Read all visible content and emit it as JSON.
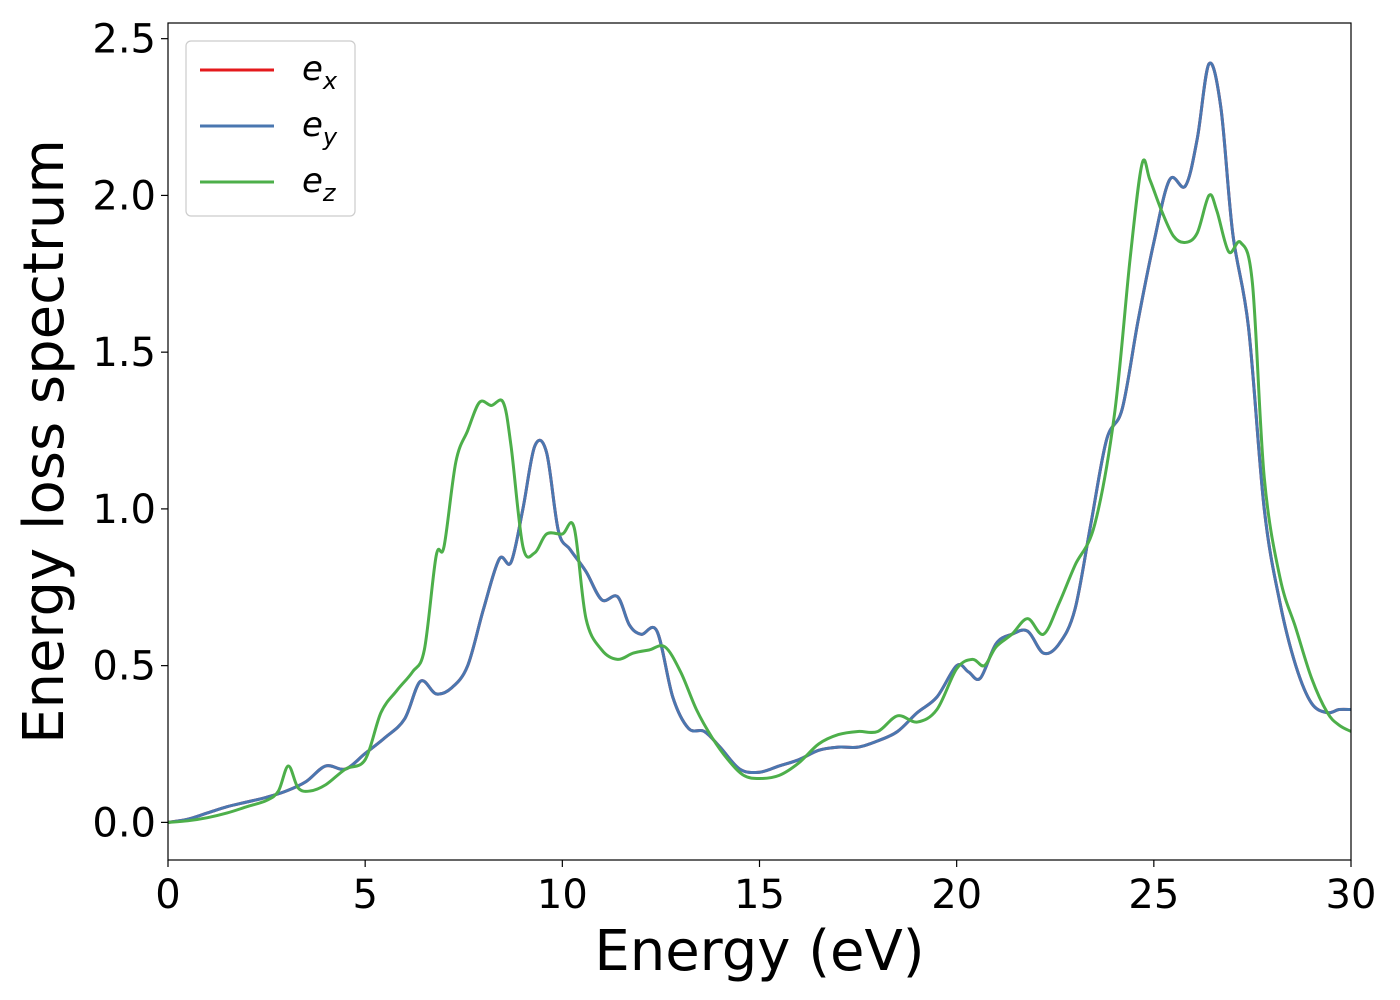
{
  "chart_data": {
    "type": "line",
    "title": "",
    "xlabel": "Energy (eV)",
    "ylabel": "Energy loss spectrum",
    "xlim": [
      0,
      30
    ],
    "ylim": [
      -0.12,
      2.55
    ],
    "xticks": [
      0,
      5,
      10,
      15,
      20,
      25,
      30
    ],
    "xtick_labels": [
      "0",
      "5",
      "10",
      "15",
      "20",
      "25",
      "30"
    ],
    "yticks": [
      0.0,
      0.5,
      1.0,
      1.5,
      2.0,
      2.5
    ],
    "ytick_labels": [
      "0.0",
      "0.5",
      "1.0",
      "1.5",
      "2.0",
      "2.5"
    ],
    "grid": false,
    "legend_position": "top-left",
    "series": [
      {
        "name": "e_x",
        "base": "e",
        "sub": "x",
        "color": "#e41a1c",
        "x": [
          0,
          0.5,
          1,
          1.5,
          2,
          2.5,
          3,
          3.5,
          4,
          4.5,
          5,
          5.5,
          6,
          6.4,
          6.8,
          7.2,
          7.6,
          8,
          8.4,
          8.7,
          9,
          9.3,
          9.6,
          9.9,
          10.2,
          10.6,
          11,
          11.4,
          11.7,
          12,
          12.4,
          12.8,
          13.2,
          13.6,
          14,
          14.5,
          15,
          15.5,
          16,
          16.5,
          17,
          17.5,
          18,
          18.5,
          19,
          19.5,
          20,
          20.3,
          20.6,
          21,
          21.4,
          21.8,
          22.2,
          22.6,
          23,
          23.4,
          23.8,
          24.2,
          24.6,
          25,
          25.4,
          25.8,
          26.1,
          26.4,
          26.7,
          27,
          27.4,
          27.8,
          28.2,
          28.6,
          29,
          29.4,
          29.7,
          30
        ],
        "y": [
          0,
          0.01,
          0.03,
          0.05,
          0.065,
          0.08,
          0.1,
          0.13,
          0.18,
          0.17,
          0.22,
          0.27,
          0.33,
          0.45,
          0.41,
          0.43,
          0.5,
          0.68,
          0.84,
          0.83,
          1.0,
          1.2,
          1.18,
          0.93,
          0.87,
          0.8,
          0.71,
          0.72,
          0.63,
          0.6,
          0.61,
          0.4,
          0.3,
          0.29,
          0.24,
          0.17,
          0.16,
          0.18,
          0.2,
          0.23,
          0.24,
          0.24,
          0.26,
          0.29,
          0.35,
          0.4,
          0.5,
          0.48,
          0.46,
          0.57,
          0.6,
          0.61,
          0.54,
          0.57,
          0.68,
          0.95,
          1.22,
          1.32,
          1.6,
          1.85,
          2.05,
          2.03,
          2.18,
          2.42,
          2.28,
          1.88,
          1.58,
          1.0,
          0.7,
          0.5,
          0.38,
          0.35,
          0.36,
          0.36
        ]
      },
      {
        "name": "e_y",
        "base": "e",
        "sub": "y",
        "color": "#4a77b0",
        "x": [
          0,
          0.5,
          1,
          1.5,
          2,
          2.5,
          3,
          3.5,
          4,
          4.5,
          5,
          5.5,
          6,
          6.4,
          6.8,
          7.2,
          7.6,
          8,
          8.4,
          8.7,
          9,
          9.3,
          9.6,
          9.9,
          10.2,
          10.6,
          11,
          11.4,
          11.7,
          12,
          12.4,
          12.8,
          13.2,
          13.6,
          14,
          14.5,
          15,
          15.5,
          16,
          16.5,
          17,
          17.5,
          18,
          18.5,
          19,
          19.5,
          20,
          20.3,
          20.6,
          21,
          21.4,
          21.8,
          22.2,
          22.6,
          23,
          23.4,
          23.8,
          24.2,
          24.6,
          25,
          25.4,
          25.8,
          26.1,
          26.4,
          26.7,
          27,
          27.4,
          27.8,
          28.2,
          28.6,
          29,
          29.4,
          29.7,
          30
        ],
        "y": [
          0,
          0.01,
          0.03,
          0.05,
          0.065,
          0.08,
          0.1,
          0.13,
          0.18,
          0.17,
          0.22,
          0.27,
          0.33,
          0.45,
          0.41,
          0.43,
          0.5,
          0.68,
          0.84,
          0.83,
          1.0,
          1.2,
          1.18,
          0.93,
          0.87,
          0.8,
          0.71,
          0.72,
          0.63,
          0.6,
          0.61,
          0.4,
          0.3,
          0.29,
          0.24,
          0.17,
          0.16,
          0.18,
          0.2,
          0.23,
          0.24,
          0.24,
          0.26,
          0.29,
          0.35,
          0.4,
          0.5,
          0.48,
          0.46,
          0.57,
          0.6,
          0.61,
          0.54,
          0.57,
          0.68,
          0.95,
          1.22,
          1.32,
          1.6,
          1.85,
          2.05,
          2.03,
          2.18,
          2.42,
          2.28,
          1.88,
          1.58,
          1.0,
          0.7,
          0.5,
          0.38,
          0.35,
          0.36,
          0.36
        ]
      },
      {
        "name": "e_z",
        "base": "e",
        "sub": "z",
        "color": "#4daf4a",
        "x": [
          0,
          0.5,
          1,
          1.5,
          2,
          2.5,
          2.8,
          3.05,
          3.3,
          3.6,
          4,
          4.5,
          5,
          5.4,
          5.8,
          6.2,
          6.5,
          6.8,
          7.0,
          7.3,
          7.6,
          7.9,
          8.2,
          8.5,
          8.7,
          9.0,
          9.3,
          9.6,
          10.0,
          10.3,
          10.6,
          11,
          11.4,
          11.8,
          12.2,
          12.6,
          13,
          13.4,
          13.8,
          14.2,
          14.6,
          15,
          15.5,
          16,
          16.5,
          17,
          17.5,
          18,
          18.5,
          19,
          19.5,
          20,
          20.4,
          20.7,
          21,
          21.4,
          21.8,
          22.2,
          22.6,
          23,
          23.5,
          24,
          24.4,
          24.7,
          24.9,
          25.2,
          25.5,
          25.8,
          26.1,
          26.4,
          26.6,
          26.9,
          27.2,
          27.5,
          27.8,
          28.2,
          28.6,
          29,
          29.4,
          29.7,
          30
        ],
        "y": [
          0,
          0.005,
          0.015,
          0.03,
          0.05,
          0.07,
          0.1,
          0.18,
          0.11,
          0.1,
          0.12,
          0.17,
          0.2,
          0.35,
          0.42,
          0.48,
          0.55,
          0.85,
          0.88,
          1.15,
          1.25,
          1.34,
          1.33,
          1.34,
          1.2,
          0.88,
          0.86,
          0.92,
          0.92,
          0.94,
          0.65,
          0.55,
          0.52,
          0.54,
          0.55,
          0.56,
          0.48,
          0.36,
          0.27,
          0.2,
          0.15,
          0.14,
          0.15,
          0.19,
          0.25,
          0.28,
          0.29,
          0.29,
          0.34,
          0.32,
          0.36,
          0.49,
          0.52,
          0.5,
          0.56,
          0.6,
          0.65,
          0.6,
          0.7,
          0.82,
          0.95,
          1.3,
          1.8,
          2.1,
          2.05,
          1.95,
          1.87,
          1.85,
          1.88,
          2.0,
          1.95,
          1.82,
          1.85,
          1.72,
          1.1,
          0.78,
          0.62,
          0.46,
          0.35,
          0.31,
          0.29
        ]
      }
    ]
  }
}
